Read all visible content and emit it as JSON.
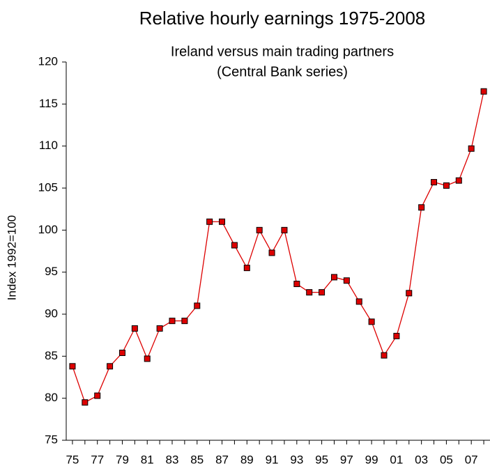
{
  "chart_data": {
    "type": "line",
    "title": "Relative hourly earnings 1975-2008",
    "subtitle": [
      "Ireland versus main trading partners",
      "(Central Bank series)"
    ],
    "y_label": "Index 1992=100",
    "categories": [
      "75",
      null,
      "77",
      null,
      "79",
      null,
      "81",
      null,
      "83",
      null,
      "85",
      null,
      "87",
      null,
      "89",
      null,
      "91",
      null,
      "93",
      null,
      "95",
      null,
      "97",
      null,
      "99",
      null,
      "01",
      null,
      "03",
      null,
      "05",
      null,
      "07",
      null
    ],
    "series": [
      {
        "name": "Relative hourly earnings",
        "color": "#dd0000",
        "values": [
          83.8,
          79.5,
          80.3,
          83.8,
          85.4,
          88.3,
          84.7,
          88.3,
          89.2,
          89.2,
          91.0,
          101.0,
          101.0,
          98.2,
          95.5,
          100.0,
          97.3,
          100.0,
          93.6,
          92.6,
          92.6,
          94.4,
          94.0,
          91.5,
          89.1,
          85.1,
          87.4,
          92.5,
          102.7,
          105.7,
          105.3,
          105.9,
          109.7,
          116.5
        ]
      }
    ],
    "ylim": [
      75,
      120
    ],
    "yticks": [
      75,
      80,
      85,
      90,
      95,
      100,
      105,
      110,
      115,
      120
    ],
    "grid": false
  }
}
